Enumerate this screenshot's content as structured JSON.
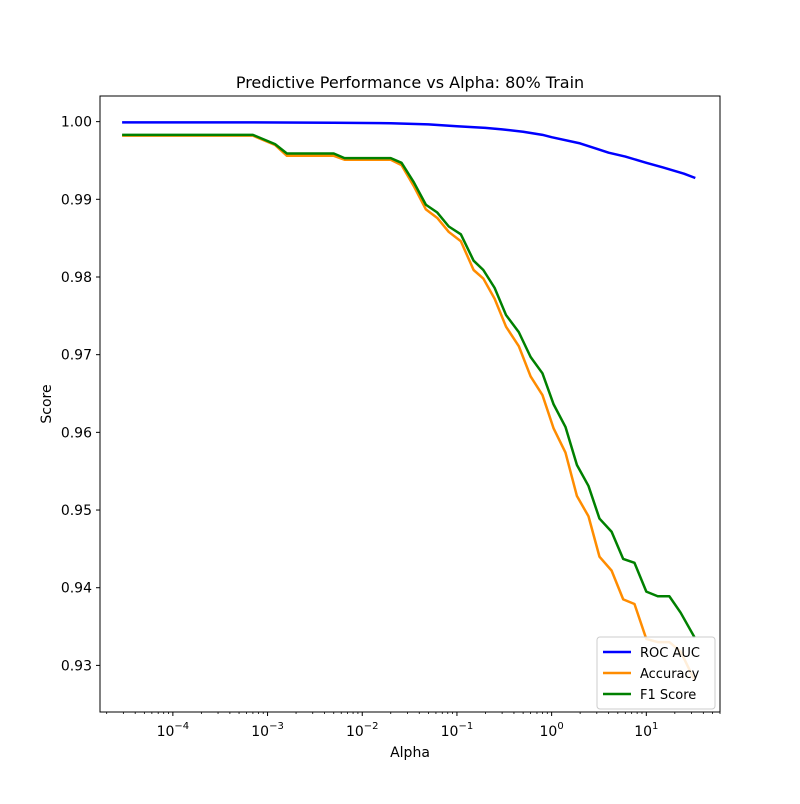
{
  "chart_data": {
    "type": "line",
    "title": "Predictive Performance vs Alpha: 80% Train",
    "xlabel": "Alpha",
    "ylabel": "Score",
    "xscale": "log",
    "xlim": [
      1.7e-05,
      60
    ],
    "ylim": [
      0.924,
      1.0033
    ],
    "xticks": [
      {
        "value": 0.0001,
        "base": "10",
        "exp": "−4"
      },
      {
        "value": 0.001,
        "base": "10",
        "exp": "−3"
      },
      {
        "value": 0.01,
        "base": "10",
        "exp": "−2"
      },
      {
        "value": 0.1,
        "base": "10",
        "exp": "−1"
      },
      {
        "value": 1,
        "base": "10",
        "exp": "0"
      },
      {
        "value": 10,
        "base": "10",
        "exp": "1"
      }
    ],
    "yticks": [
      {
        "value": 0.93,
        "label": "0.93"
      },
      {
        "value": 0.94,
        "label": "0.94"
      },
      {
        "value": 0.95,
        "label": "0.95"
      },
      {
        "value": 0.96,
        "label": "0.96"
      },
      {
        "value": 0.97,
        "label": "0.97"
      },
      {
        "value": 0.98,
        "label": "0.98"
      },
      {
        "value": 0.99,
        "label": "0.99"
      },
      {
        "value": 1.0,
        "label": "1.00"
      }
    ],
    "grid": false,
    "legend_position": "lower right",
    "series": [
      {
        "name": "ROC AUC",
        "color": "#0000ff",
        "points": [
          [
            3e-05,
            0.9999
          ],
          [
            0.0007,
            0.9999
          ],
          [
            0.005,
            0.99985
          ],
          [
            0.02,
            0.9998
          ],
          [
            0.05,
            0.99965
          ],
          [
            0.1,
            0.9994
          ],
          [
            0.2,
            0.9992
          ],
          [
            0.3,
            0.999
          ],
          [
            0.5,
            0.9987
          ],
          [
            0.8,
            0.9983
          ],
          [
            1.0,
            0.998
          ],
          [
            2.0,
            0.9972
          ],
          [
            3.0,
            0.9965
          ],
          [
            4.0,
            0.996
          ],
          [
            6.0,
            0.9955
          ],
          [
            10.0,
            0.9947
          ],
          [
            15.0,
            0.9941
          ],
          [
            25.0,
            0.9933
          ],
          [
            32.0,
            0.9928
          ]
        ]
      },
      {
        "name": "Accuracy",
        "color": "#ff8c00",
        "points": [
          [
            3e-05,
            0.9982
          ],
          [
            0.0007,
            0.9982
          ],
          [
            0.0012,
            0.997
          ],
          [
            0.0016,
            0.9956
          ],
          [
            0.005,
            0.9956
          ],
          [
            0.0065,
            0.9951
          ],
          [
            0.02,
            0.9951
          ],
          [
            0.026,
            0.9944
          ],
          [
            0.035,
            0.9917
          ],
          [
            0.047,
            0.9887
          ],
          [
            0.062,
            0.9876
          ],
          [
            0.082,
            0.9858
          ],
          [
            0.11,
            0.9846
          ],
          [
            0.15,
            0.9809
          ],
          [
            0.19,
            0.9798
          ],
          [
            0.25,
            0.9772
          ],
          [
            0.33,
            0.9736
          ],
          [
            0.45,
            0.9711
          ],
          [
            0.6,
            0.9672
          ],
          [
            0.8,
            0.9648
          ],
          [
            1.05,
            0.9605
          ],
          [
            1.4,
            0.9574
          ],
          [
            1.85,
            0.9518
          ],
          [
            2.45,
            0.9492
          ],
          [
            3.2,
            0.944
          ],
          [
            4.3,
            0.9422
          ],
          [
            5.7,
            0.9385
          ],
          [
            7.5,
            0.9379
          ],
          [
            10.0,
            0.9334
          ],
          [
            13.2,
            0.933
          ],
          [
            17.5,
            0.933
          ],
          [
            23.0,
            0.9318
          ],
          [
            32.0,
            0.9282
          ]
        ]
      },
      {
        "name": "F1 Score",
        "color": "#008000",
        "points": [
          [
            3e-05,
            0.9983
          ],
          [
            0.0007,
            0.9983
          ],
          [
            0.0012,
            0.9971
          ],
          [
            0.0016,
            0.9959
          ],
          [
            0.005,
            0.9959
          ],
          [
            0.0065,
            0.9953
          ],
          [
            0.02,
            0.9953
          ],
          [
            0.026,
            0.9947
          ],
          [
            0.035,
            0.9922
          ],
          [
            0.047,
            0.9893
          ],
          [
            0.062,
            0.9883
          ],
          [
            0.082,
            0.9865
          ],
          [
            0.11,
            0.9855
          ],
          [
            0.15,
            0.9821
          ],
          [
            0.19,
            0.9809
          ],
          [
            0.25,
            0.9786
          ],
          [
            0.33,
            0.9751
          ],
          [
            0.45,
            0.9729
          ],
          [
            0.6,
            0.9697
          ],
          [
            0.8,
            0.9676
          ],
          [
            1.05,
            0.9636
          ],
          [
            1.4,
            0.9607
          ],
          [
            1.85,
            0.9558
          ],
          [
            2.45,
            0.9531
          ],
          [
            3.2,
            0.9489
          ],
          [
            4.3,
            0.9472
          ],
          [
            5.7,
            0.9437
          ],
          [
            7.5,
            0.9432
          ],
          [
            10.0,
            0.9395
          ],
          [
            13.2,
            0.9389
          ],
          [
            17.5,
            0.9389
          ],
          [
            23.0,
            0.9368
          ],
          [
            32.0,
            0.9337
          ]
        ]
      }
    ]
  }
}
